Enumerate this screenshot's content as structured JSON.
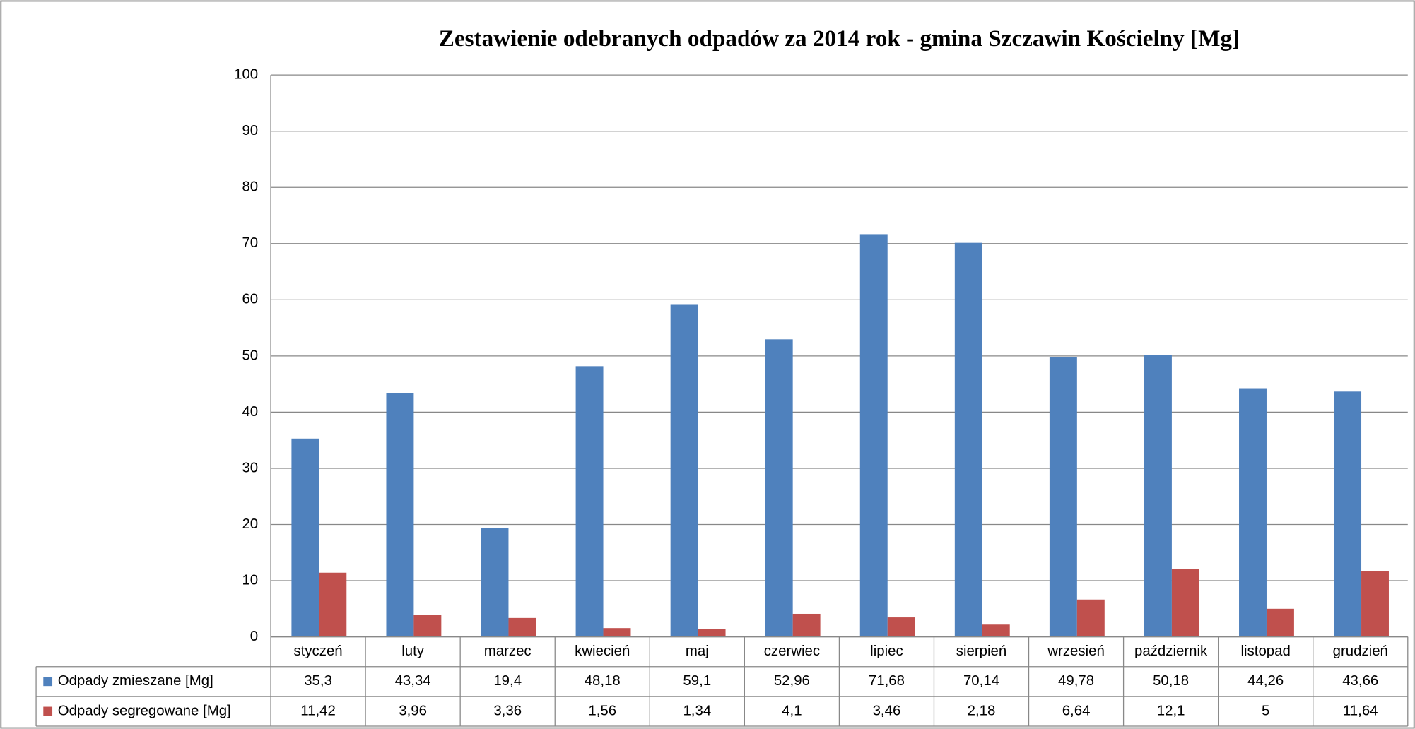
{
  "chart_data": {
    "type": "bar",
    "title": "Zestawienie  odebranych odpadów  za 2014 rok  - gmina Szczawin  Kościelny [Mg]",
    "categories": [
      "styczeń",
      "luty",
      "marzec",
      "kwiecień",
      "maj",
      "czerwiec",
      "lipiec",
      "sierpień",
      "wrzesień",
      "październik",
      "listopad",
      "grudzień"
    ],
    "series": [
      {
        "name": "Odpady zmieszane [Mg]",
        "color": "#4f81bd",
        "values": [
          35.3,
          43.34,
          19.4,
          48.18,
          59.1,
          52.96,
          71.68,
          70.14,
          49.78,
          50.18,
          44.26,
          43.66
        ],
        "value_labels": [
          "35,3",
          "43,34",
          "19,4",
          "48,18",
          "59,1",
          "52,96",
          "71,68",
          "70,14",
          "49,78",
          "50,18",
          "44,26",
          "43,66"
        ]
      },
      {
        "name": "Odpady segregowane [Mg]",
        "color": "#c0504d",
        "values": [
          11.42,
          3.96,
          3.36,
          1.56,
          1.34,
          4.1,
          3.46,
          2.18,
          6.64,
          12.1,
          5,
          11.64
        ],
        "value_labels": [
          "11,42",
          "3,96",
          "3,36",
          "1,56",
          "1,34",
          "4,1",
          "3,46",
          "2,18",
          "6,64",
          "12,1",
          "5",
          "11,64"
        ]
      }
    ],
    "ylim": [
      0,
      100
    ],
    "yticks": [
      0,
      10,
      20,
      30,
      40,
      50,
      60,
      70,
      80,
      90,
      100
    ],
    "grid": true
  }
}
